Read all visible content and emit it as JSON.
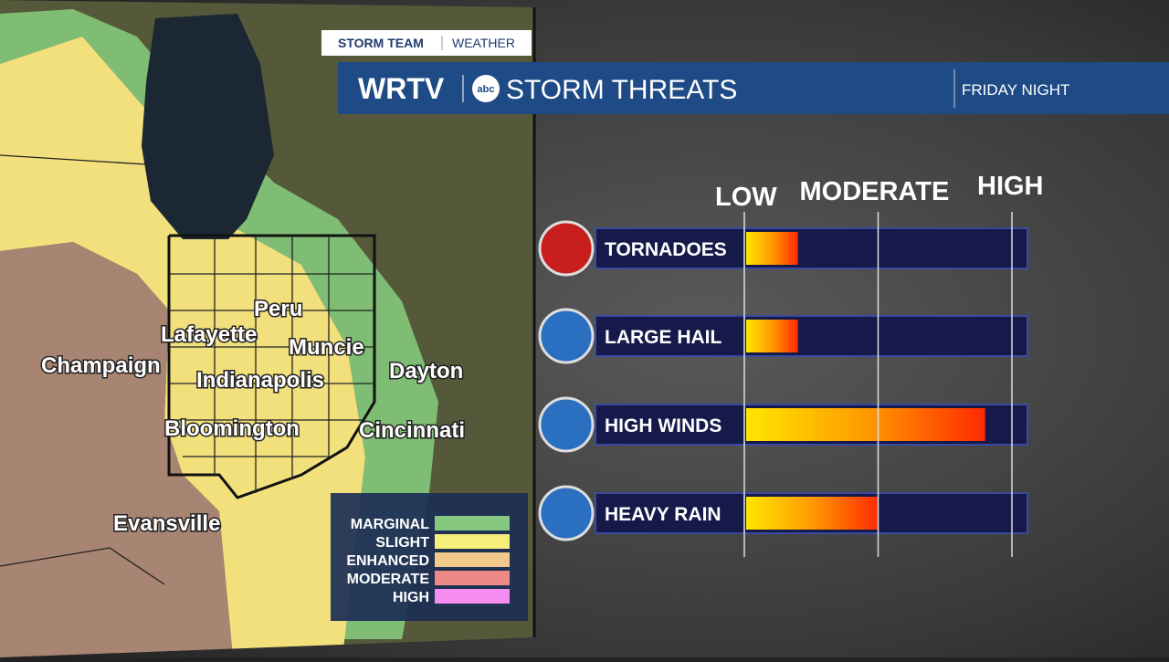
{
  "header": {
    "badge_left": "STORM TEAM",
    "badge_right": "WEATHER",
    "station": "WRTV",
    "network": "abc",
    "title": "STORM THREATS",
    "period": "FRIDAY NIGHT"
  },
  "map": {
    "cities": [
      "Peru",
      "Lafayette",
      "Muncie",
      "Champaign",
      "Indianapolis",
      "Dayton",
      "Bloomington",
      "Cincinnati",
      "Evansville"
    ],
    "legend": [
      {
        "label": "MARGINAL",
        "color": "#86c77f"
      },
      {
        "label": "SLIGHT",
        "color": "#f5ee7a"
      },
      {
        "label": "ENHANCED",
        "color": "#f2c98a"
      },
      {
        "label": "MODERATE",
        "color": "#ee8a85"
      },
      {
        "label": "HIGH",
        "color": "#f58cf0"
      }
    ]
  },
  "threats": {
    "scale": [
      {
        "value": 0,
        "label": "LOW"
      },
      {
        "value": 1,
        "label": "MODERATE"
      },
      {
        "value": 2,
        "label": "HIGH"
      }
    ],
    "rows": [
      {
        "name": "TORNADOES",
        "value": 0.4
      },
      {
        "name": "LARGE HAIL",
        "value": 0.4
      },
      {
        "name": "HIGH WINDS",
        "value": 1.8
      },
      {
        "name": "HEAVY RAIN",
        "value": 1.0
      }
    ]
  }
}
